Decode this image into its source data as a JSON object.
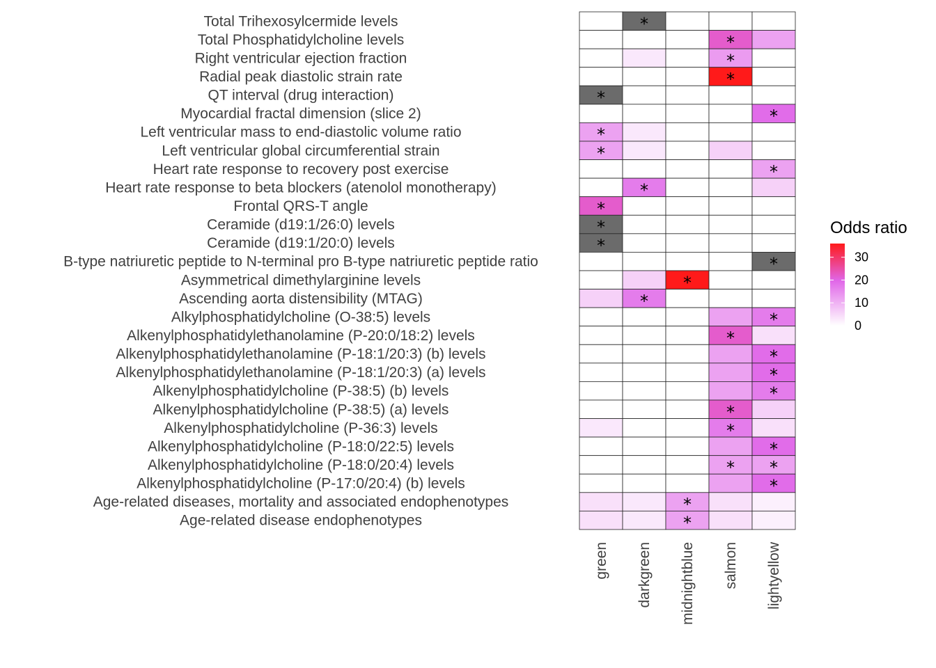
{
  "chart_data": {
    "type": "heatmap",
    "legend": {
      "title": "Odds ratio",
      "ticks": [
        0,
        10,
        20,
        30
      ],
      "range": [
        0,
        36
      ],
      "colors": {
        "low": "#ffffff",
        "mid": "#e066e8",
        "high": "#ff1a1a"
      },
      "position": "right"
    },
    "na_color": "#6b6b6b",
    "columns": [
      "green",
      "darkgreen",
      "midnightblue",
      "salmon",
      "lightyellow"
    ],
    "rows": [
      {
        "label": "Total Trihexosylcermide levels",
        "values": [
          0,
          null,
          0,
          0,
          0
        ],
        "stars": [
          false,
          true,
          false,
          false,
          false
        ]
      },
      {
        "label": "Total Phosphatidylcholine levels",
        "values": [
          0,
          0,
          0,
          22,
          12
        ],
        "stars": [
          false,
          false,
          false,
          true,
          false
        ]
      },
      {
        "label": "Right ventricular ejection fraction",
        "values": [
          0,
          3,
          0,
          13,
          0
        ],
        "stars": [
          false,
          false,
          false,
          true,
          false
        ]
      },
      {
        "label": "Radial peak diastolic strain rate",
        "values": [
          0,
          0,
          0,
          36,
          0
        ],
        "stars": [
          false,
          false,
          false,
          true,
          false
        ]
      },
      {
        "label": "QT interval (drug interaction)",
        "values": [
          null,
          0,
          0,
          0,
          0
        ],
        "stars": [
          true,
          false,
          false,
          false,
          false
        ]
      },
      {
        "label": "Myocardial fractal dimension (slice 2)",
        "values": [
          0,
          0,
          0,
          0,
          19
        ],
        "stars": [
          false,
          false,
          false,
          false,
          true
        ]
      },
      {
        "label": "Left ventricular mass to end-diastolic volume ratio",
        "values": [
          12,
          3,
          0,
          0,
          0
        ],
        "stars": [
          true,
          false,
          false,
          false,
          false
        ]
      },
      {
        "label": "Left ventricular global circumferential strain",
        "values": [
          12,
          3,
          0,
          6,
          0
        ],
        "stars": [
          true,
          false,
          false,
          false,
          false
        ]
      },
      {
        "label": "Heart rate response to recovery post exercise",
        "values": [
          0,
          0,
          0,
          0,
          12
        ],
        "stars": [
          false,
          false,
          false,
          false,
          true
        ]
      },
      {
        "label": "Heart rate response to beta blockers (atenolol monotherapy)",
        "values": [
          0,
          17,
          0,
          0,
          6
        ],
        "stars": [
          false,
          true,
          false,
          false,
          false
        ]
      },
      {
        "label": "Frontal QRS-T angle",
        "values": [
          22,
          0,
          0,
          0,
          0
        ],
        "stars": [
          true,
          false,
          false,
          false,
          false
        ]
      },
      {
        "label": "Ceramide (d19:1/26:0) levels",
        "values": [
          null,
          0,
          0,
          0,
          0
        ],
        "stars": [
          true,
          false,
          false,
          false,
          false
        ]
      },
      {
        "label": "Ceramide (d19:1/20:0) levels",
        "values": [
          null,
          0,
          0,
          0,
          0
        ],
        "stars": [
          true,
          false,
          false,
          false,
          false
        ]
      },
      {
        "label": "B-type natriuretic peptide to N-terminal pro B-type natriuretic peptide ratio",
        "values": [
          0,
          0,
          0,
          0,
          null
        ],
        "stars": [
          false,
          false,
          false,
          false,
          true
        ]
      },
      {
        "label": "Asymmetrical dimethylarginine levels",
        "values": [
          0,
          6,
          36,
          0,
          0
        ],
        "stars": [
          false,
          false,
          true,
          false,
          false
        ]
      },
      {
        "label": "Ascending aorta distensibility (MTAG)",
        "values": [
          6,
          17,
          0,
          0,
          0
        ],
        "stars": [
          false,
          true,
          false,
          false,
          false
        ]
      },
      {
        "label": "Alkylphosphatidylcholine (O-38:5) levels",
        "values": [
          0,
          0,
          0,
          12,
          17
        ],
        "stars": [
          false,
          false,
          false,
          false,
          true
        ]
      },
      {
        "label": "Alkenylphosphatidylethanolamine (P-20:0/18:2) levels",
        "values": [
          0,
          0,
          0,
          22,
          4
        ],
        "stars": [
          false,
          false,
          false,
          true,
          false
        ]
      },
      {
        "label": "Alkenylphosphatidylethanolamine (P-18:1/20:3) (b) levels",
        "values": [
          0,
          0,
          0,
          12,
          19
        ],
        "stars": [
          false,
          false,
          false,
          false,
          true
        ]
      },
      {
        "label": "Alkenylphosphatidylethanolamine (P-18:1/20:3) (a) levels",
        "values": [
          0,
          0,
          0,
          12,
          19
        ],
        "stars": [
          false,
          false,
          false,
          false,
          true
        ]
      },
      {
        "label": "Alkenylphosphatidylcholine (P-38:5) (b) levels",
        "values": [
          0,
          0,
          0,
          12,
          17
        ],
        "stars": [
          false,
          false,
          false,
          false,
          true
        ]
      },
      {
        "label": "Alkenylphosphatidylcholine (P-38:5) (a) levels",
        "values": [
          0,
          0,
          0,
          22,
          6
        ],
        "stars": [
          false,
          false,
          false,
          true,
          false
        ]
      },
      {
        "label": "Alkenylphosphatidylcholine (P-36:3) levels",
        "values": [
          3,
          0,
          0,
          17,
          4
        ],
        "stars": [
          false,
          false,
          false,
          true,
          false
        ]
      },
      {
        "label": "Alkenylphosphatidylcholine (P-18:0/22:5) levels",
        "values": [
          0,
          0,
          0,
          12,
          19
        ],
        "stars": [
          false,
          false,
          false,
          false,
          true
        ]
      },
      {
        "label": "Alkenylphosphatidylcholine (P-18:0/20:4) levels",
        "values": [
          0,
          0,
          0,
          12,
          12
        ],
        "stars": [
          false,
          false,
          false,
          true,
          true
        ]
      },
      {
        "label": "Alkenylphosphatidylcholine (P-17:0/20:4) (b) levels",
        "values": [
          0,
          0,
          0,
          12,
          19
        ],
        "stars": [
          false,
          false,
          false,
          false,
          true
        ]
      },
      {
        "label": "Age-related diseases, mortality and associated endophenotypes",
        "values": [
          4,
          3,
          12,
          4,
          2
        ],
        "stars": [
          false,
          false,
          true,
          false,
          false
        ]
      },
      {
        "label": "Age-related disease endophenotypes",
        "values": [
          4,
          3,
          12,
          4,
          2
        ],
        "stars": [
          false,
          false,
          true,
          false,
          false
        ]
      }
    ]
  }
}
